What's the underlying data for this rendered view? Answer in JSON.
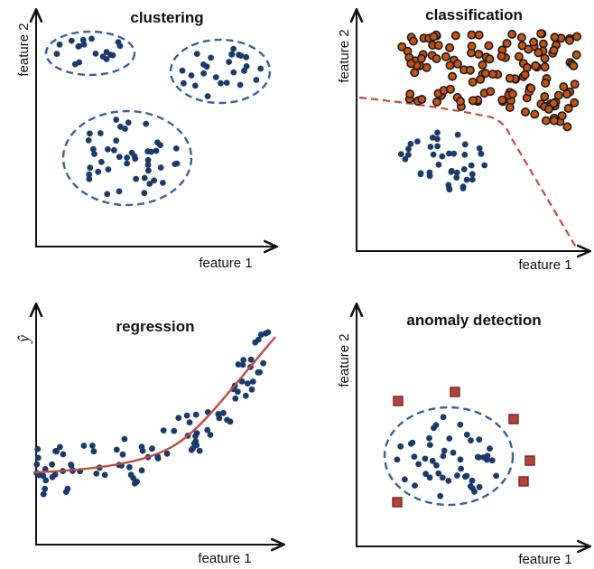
{
  "colors": {
    "point": "#1b3a6b",
    "ellipse": "#3a5f96",
    "boundary": "#c24a3e",
    "orange_fill": "#c8520f",
    "orange_stroke": "#1a1a1a",
    "anomaly_fill": "#b5413a",
    "anomaly_stroke": "#7a2a25"
  },
  "panels": {
    "clustering": {
      "title": "clustering",
      "xlabel": "",
      "ylabel": "feature 2"
    },
    "classification": {
      "title": "classification",
      "xlabel": "feature 1",
      "ylabel": "feature 2"
    },
    "regression": {
      "title": "regression",
      "xlabel": "feature 1",
      "ylabel": "ŷ"
    },
    "anomaly": {
      "title": "anomaly detection",
      "xlabel": "feature 1",
      "ylabel": "feature 2"
    }
  },
  "clustering_xlabel": "feature 1"
}
